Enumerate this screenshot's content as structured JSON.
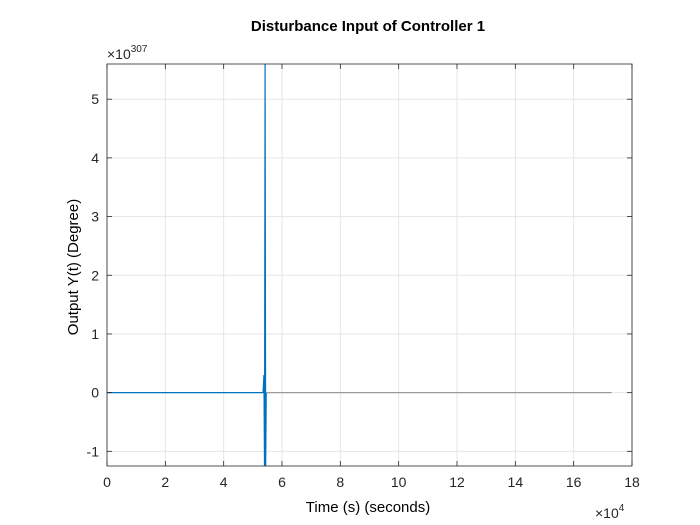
{
  "chart_data": {
    "type": "line",
    "title": "Disturbance Input of Controller 1",
    "xlabel": "Time (s) (seconds)",
    "ylabel": "Output Y(t) (Degree)",
    "x_exponent_base": "×10",
    "x_exponent": "4",
    "y_exponent_base": "×10",
    "y_exponent": "307",
    "xlim": [
      0,
      18
    ],
    "ylim": [
      -1.25,
      5.6
    ],
    "x_ticks": [
      0,
      2,
      4,
      6,
      8,
      10,
      12,
      14,
      16,
      18
    ],
    "x_tick_labels": [
      "0",
      "2",
      "4",
      "6",
      "8",
      "10",
      "12",
      "14",
      "16",
      "18"
    ],
    "y_ticks": [
      -1,
      0,
      1,
      2,
      3,
      4,
      5
    ],
    "y_tick_labels": [
      "-1",
      "0",
      "1",
      "2",
      "3",
      "4",
      "5"
    ],
    "grid": true,
    "colors": {
      "series": "#0072BD",
      "tail": "#9a9a9a",
      "grid": "#e6e6e6",
      "axis": "#262626"
    },
    "series": [
      {
        "color": "#0072BD",
        "x": [
          0,
          1,
          2,
          3,
          4,
          5,
          5.35,
          5.38,
          5.4,
          5.42,
          5.44,
          5.46
        ],
        "y": [
          0,
          0,
          0,
          0,
          0,
          0,
          0,
          0.3,
          -1.25,
          5.6,
          -1.25,
          0
        ]
      },
      {
        "color": "#9a9a9a",
        "x": [
          5.46,
          17.3
        ],
        "y": [
          0,
          0
        ]
      }
    ]
  }
}
